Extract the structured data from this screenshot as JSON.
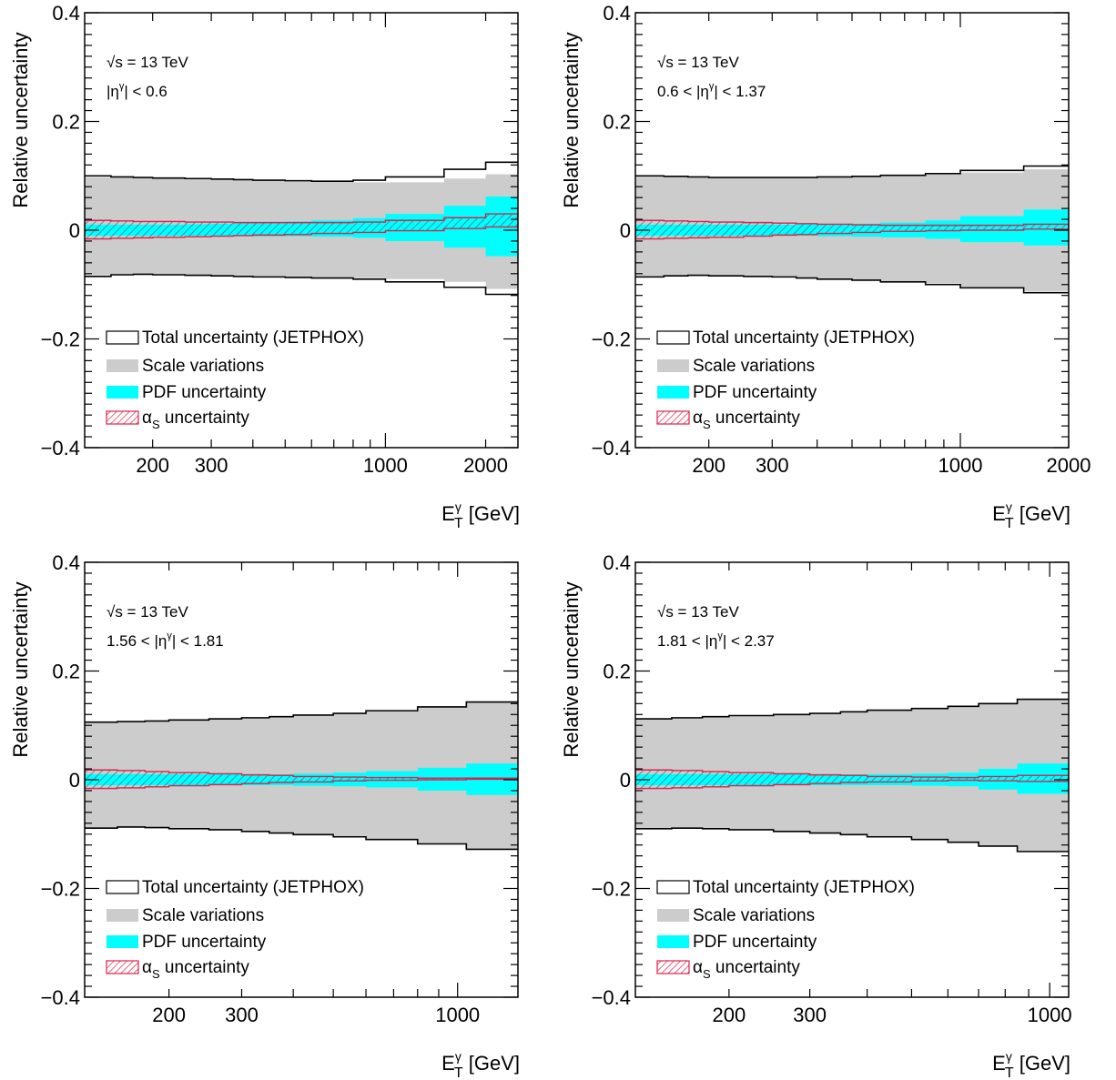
{
  "figure": {
    "legend_entries": {
      "total": "Total uncertainty (JETPHOX)",
      "scale": "Scale variations",
      "pdf": "PDF uncertainty",
      "alphas_symbol": "α",
      "alphas_sub": "S",
      "alphas_text": "uncertainty"
    },
    "colors": {
      "total": "#000000",
      "scale": "#cccccc",
      "pdf": "#00ffff",
      "alphas": "#e0204a",
      "hatch_fill": "#1d8a96"
    }
  },
  "chart_data": [
    {
      "type": "area",
      "xscale": "log",
      "xlim": [
        125,
        2500
      ],
      "ylim": [
        -0.4,
        0.4
      ],
      "xticks": [
        200,
        300,
        1000,
        2000
      ],
      "xtick_labels": [
        "200",
        "300",
        "1000",
        "2000"
      ],
      "yticks": [
        -0.4,
        -0.2,
        0,
        0.2,
        0.4
      ],
      "ytick_labels": [
        "−0.4",
        "−0.2",
        "0",
        "0.2",
        "0.4"
      ],
      "xlabel": "E",
      "xlabel_sup": "γ",
      "xlabel_sub": "T",
      "xlabel_unit": "[GeV]",
      "ylabel": "Relative uncertainty",
      "annotation1": "√s = 13 TeV",
      "annotation2": "|η^γ| < 0.6",
      "annotation2_parts": {
        "pre": "|η",
        "sup": "γ",
        "post": "| < 0.6"
      },
      "bins": [
        125,
        150,
        175,
        200,
        250,
        300,
        350,
        400,
        500,
        600,
        800,
        1000,
        1500,
        2000,
        2500
      ],
      "total_up": [
        0.1,
        0.098,
        0.097,
        0.096,
        0.095,
        0.094,
        0.093,
        0.092,
        0.091,
        0.09,
        0.092,
        0.098,
        0.112,
        0.125
      ],
      "total_dn": [
        -0.085,
        -0.082,
        -0.081,
        -0.082,
        -0.083,
        -0.084,
        -0.085,
        -0.086,
        -0.087,
        -0.088,
        -0.09,
        -0.095,
        -0.105,
        -0.118
      ],
      "scale_up": [
        0.098,
        0.097,
        0.096,
        0.095,
        0.094,
        0.093,
        0.092,
        0.091,
        0.09,
        0.089,
        0.088,
        0.088,
        0.095,
        0.103
      ],
      "scale_dn": [
        -0.083,
        -0.081,
        -0.08,
        -0.081,
        -0.082,
        -0.083,
        -0.084,
        -0.085,
        -0.086,
        -0.087,
        -0.088,
        -0.09,
        -0.095,
        -0.108
      ],
      "pdf_up": [
        0.01,
        0.01,
        0.01,
        0.01,
        0.011,
        0.012,
        0.013,
        0.014,
        0.016,
        0.018,
        0.022,
        0.03,
        0.045,
        0.062
      ],
      "pdf_dn": [
        -0.01,
        -0.01,
        -0.01,
        -0.01,
        -0.01,
        -0.01,
        -0.01,
        -0.011,
        -0.011,
        -0.012,
        -0.014,
        -0.02,
        -0.032,
        -0.048
      ],
      "alphas_up": [
        0.018,
        0.017,
        0.016,
        0.016,
        0.015,
        0.015,
        0.014,
        0.014,
        0.014,
        0.014,
        0.015,
        0.018,
        0.023,
        0.03
      ],
      "alphas_dn": [
        -0.016,
        -0.015,
        -0.014,
        -0.013,
        -0.012,
        -0.011,
        -0.01,
        -0.009,
        -0.008,
        -0.006,
        -0.004,
        -0.001,
        0.003,
        0.006
      ],
      "legend_placement": "bottom-left",
      "grid": false
    },
    {
      "type": "area",
      "xscale": "log",
      "xlim": [
        125,
        2000
      ],
      "ylim": [
        -0.4,
        0.4
      ],
      "xticks": [
        200,
        300,
        1000,
        2000
      ],
      "xtick_labels": [
        "200",
        "300",
        "1000",
        "2000"
      ],
      "yticks": [
        -0.4,
        -0.2,
        0,
        0.2,
        0.4
      ],
      "ytick_labels": [
        "−0.4",
        "−0.2",
        "0",
        "0.2",
        "0.4"
      ],
      "xlabel": "E",
      "xlabel_sup": "γ",
      "xlabel_sub": "T",
      "xlabel_unit": "[GeV]",
      "ylabel": "Relative uncertainty",
      "annotation1": "√s = 13 TeV",
      "annotation2": "0.6 < |η^γ| < 1.37",
      "annotation2_parts": {
        "pre": "0.6 < |η",
        "sup": "γ",
        "post": "| < 1.37"
      },
      "bins": [
        125,
        150,
        175,
        200,
        250,
        300,
        350,
        400,
        500,
        600,
        800,
        1000,
        1500,
        2000
      ],
      "total_up": [
        0.1,
        0.099,
        0.098,
        0.097,
        0.097,
        0.097,
        0.097,
        0.098,
        0.099,
        0.101,
        0.104,
        0.11,
        0.118
      ],
      "total_dn": [
        -0.086,
        -0.084,
        -0.083,
        -0.084,
        -0.085,
        -0.086,
        -0.088,
        -0.09,
        -0.092,
        -0.095,
        -0.1,
        -0.106,
        -0.115
      ],
      "scale_up": [
        0.099,
        0.098,
        0.097,
        0.096,
        0.096,
        0.096,
        0.096,
        0.097,
        0.098,
        0.1,
        0.102,
        0.106,
        0.112
      ],
      "scale_dn": [
        -0.085,
        -0.083,
        -0.082,
        -0.083,
        -0.084,
        -0.085,
        -0.087,
        -0.089,
        -0.091,
        -0.094,
        -0.098,
        -0.104,
        -0.112
      ],
      "pdf_up": [
        0.01,
        0.01,
        0.01,
        0.01,
        0.01,
        0.01,
        0.011,
        0.011,
        0.012,
        0.014,
        0.018,
        0.026,
        0.038
      ],
      "pdf_dn": [
        -0.01,
        -0.01,
        -0.01,
        -0.01,
        -0.01,
        -0.01,
        -0.01,
        -0.011,
        -0.012,
        -0.013,
        -0.016,
        -0.022,
        -0.028
      ],
      "alphas_up": [
        0.018,
        0.017,
        0.016,
        0.015,
        0.014,
        0.013,
        0.012,
        0.011,
        0.01,
        0.009,
        0.009,
        0.009,
        0.011
      ],
      "alphas_dn": [
        -0.016,
        -0.015,
        -0.014,
        -0.013,
        -0.011,
        -0.009,
        -0.008,
        -0.006,
        -0.004,
        -0.002,
        -0.001,
        0.0,
        0.002
      ],
      "legend_placement": "bottom-left",
      "grid": false
    },
    {
      "type": "area",
      "xscale": "log",
      "xlim": [
        125,
        1400
      ],
      "ylim": [
        -0.4,
        0.4
      ],
      "xticks": [
        200,
        300,
        1000
      ],
      "xtick_labels": [
        "200",
        "300",
        "1000"
      ],
      "yticks": [
        -0.4,
        -0.2,
        0,
        0.2,
        0.4
      ],
      "ytick_labels": [
        "−0.4",
        "−0.2",
        "0",
        "0.2",
        "0.4"
      ],
      "xlabel": "E",
      "xlabel_sup": "γ",
      "xlabel_sub": "T",
      "xlabel_unit": "[GeV]",
      "ylabel": "Relative uncertainty",
      "annotation1": "√s = 13 TeV",
      "annotation2": "1.56 < |η^γ| < 1.81",
      "annotation2_parts": {
        "pre": "1.56 < |η",
        "sup": "γ",
        "post": "| < 1.81"
      },
      "bins": [
        125,
        150,
        175,
        200,
        250,
        300,
        350,
        400,
        500,
        600,
        800,
        1050,
        1400
      ],
      "total_up": [
        0.106,
        0.107,
        0.108,
        0.11,
        0.112,
        0.114,
        0.116,
        0.119,
        0.122,
        0.127,
        0.134,
        0.143
      ],
      "total_dn": [
        -0.089,
        -0.087,
        -0.088,
        -0.09,
        -0.092,
        -0.095,
        -0.098,
        -0.101,
        -0.105,
        -0.11,
        -0.118,
        -0.128
      ],
      "scale_up": [
        0.105,
        0.106,
        0.107,
        0.109,
        0.111,
        0.113,
        0.115,
        0.118,
        0.121,
        0.126,
        0.133,
        0.142
      ],
      "scale_dn": [
        -0.088,
        -0.086,
        -0.087,
        -0.089,
        -0.091,
        -0.094,
        -0.097,
        -0.1,
        -0.104,
        -0.109,
        -0.117,
        -0.127
      ],
      "pdf_up": [
        0.01,
        0.01,
        0.01,
        0.01,
        0.01,
        0.01,
        0.01,
        0.011,
        0.013,
        0.016,
        0.022,
        0.03
      ],
      "pdf_dn": [
        -0.01,
        -0.01,
        -0.01,
        -0.01,
        -0.01,
        -0.01,
        -0.01,
        -0.011,
        -0.012,
        -0.014,
        -0.02,
        -0.028
      ],
      "alphas_up": [
        0.018,
        0.017,
        0.015,
        0.013,
        0.011,
        0.009,
        0.008,
        0.006,
        0.005,
        0.004,
        0.003,
        0.003
      ],
      "alphas_dn": [
        -0.016,
        -0.015,
        -0.013,
        -0.011,
        -0.009,
        -0.007,
        -0.005,
        -0.004,
        -0.002,
        -0.001,
        0.0,
        0.001
      ],
      "legend_placement": "bottom-left",
      "grid": false
    },
    {
      "type": "area",
      "xscale": "log",
      "xlim": [
        125,
        1100
      ],
      "ylim": [
        -0.4,
        0.4
      ],
      "xticks": [
        200,
        300,
        1000
      ],
      "xtick_labels": [
        "200",
        "300",
        "1000"
      ],
      "yticks": [
        -0.4,
        -0.2,
        0,
        0.2,
        0.4
      ],
      "ytick_labels": [
        "−0.4",
        "−0.2",
        "0",
        "0.2",
        "0.4"
      ],
      "xlabel": "E",
      "xlabel_sup": "γ",
      "xlabel_sub": "T",
      "xlabel_unit": "[GeV]",
      "ylabel": "Relative uncertainty",
      "annotation1": "√s = 13 TeV",
      "annotation2": "1.81 < |η^γ| < 2.37",
      "annotation2_parts": {
        "pre": "1.81 < |η",
        "sup": "γ",
        "post": "| < 2.37"
      },
      "bins": [
        125,
        150,
        175,
        200,
        250,
        300,
        350,
        400,
        500,
        600,
        700,
        850,
        1100
      ],
      "total_up": [
        0.112,
        0.114,
        0.116,
        0.118,
        0.12,
        0.122,
        0.125,
        0.128,
        0.131,
        0.135,
        0.14,
        0.148
      ],
      "total_dn": [
        -0.09,
        -0.089,
        -0.09,
        -0.092,
        -0.095,
        -0.098,
        -0.101,
        -0.105,
        -0.11,
        -0.115,
        -0.122,
        -0.132
      ],
      "scale_up": [
        0.111,
        0.113,
        0.115,
        0.117,
        0.119,
        0.121,
        0.124,
        0.127,
        0.13,
        0.134,
        0.139,
        0.147
      ],
      "scale_dn": [
        -0.089,
        -0.088,
        -0.089,
        -0.091,
        -0.094,
        -0.097,
        -0.1,
        -0.104,
        -0.109,
        -0.114,
        -0.121,
        -0.131
      ],
      "pdf_up": [
        0.01,
        0.01,
        0.01,
        0.01,
        0.01,
        0.01,
        0.01,
        0.01,
        0.011,
        0.013,
        0.02,
        0.03
      ],
      "pdf_dn": [
        -0.01,
        -0.01,
        -0.01,
        -0.01,
        -0.01,
        -0.01,
        -0.01,
        -0.01,
        -0.011,
        -0.012,
        -0.018,
        -0.026
      ],
      "alphas_up": [
        0.018,
        0.017,
        0.015,
        0.013,
        0.011,
        0.009,
        0.008,
        0.006,
        0.005,
        0.004,
        0.006,
        0.008
      ],
      "alphas_dn": [
        -0.016,
        -0.015,
        -0.013,
        -0.011,
        -0.009,
        -0.007,
        -0.005,
        -0.004,
        -0.002,
        -0.001,
        -0.002,
        -0.003
      ],
      "legend_placement": "bottom-left",
      "grid": false
    }
  ]
}
